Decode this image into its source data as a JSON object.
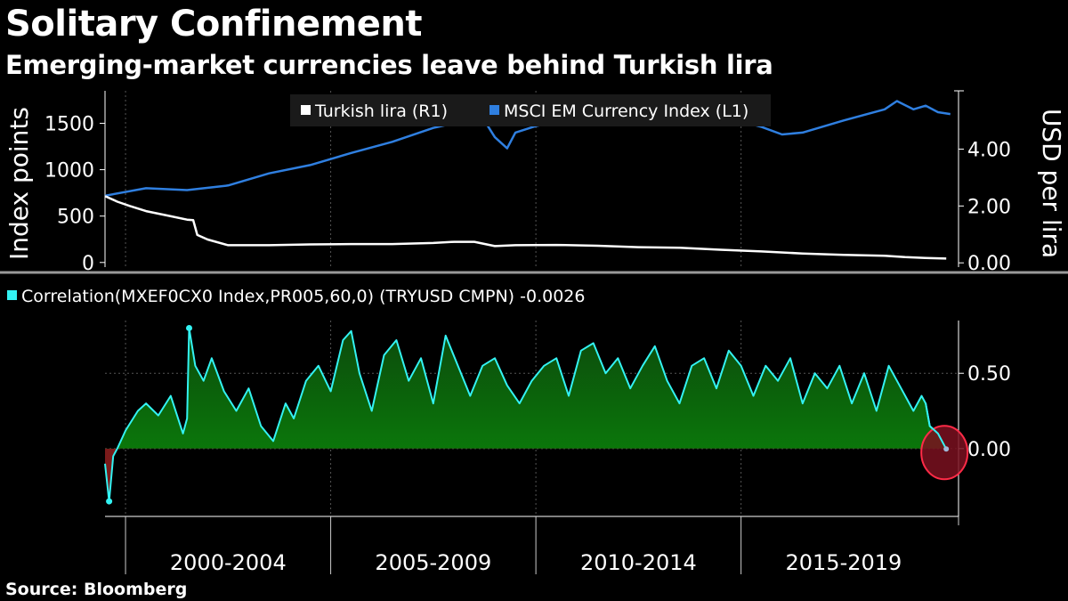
{
  "title": "Solitary Confinement",
  "subtitle": "Emerging-market currencies leave behind Turkish lira",
  "source": "Source: Bloomberg",
  "colors": {
    "lira": "#ffffff",
    "msci": "#2f7fe0",
    "correlation": "#33f2f2",
    "fill_positive": "#0a7a0a",
    "fill_negative": "#7a1a1a",
    "highlight": "#ff2b47",
    "grid": "#555555",
    "divider": "#999999"
  },
  "chart_data": [
    {
      "type": "line",
      "panel": "top",
      "ylabel": "Index points",
      "ylabel_right": "USD per lira",
      "ylim": [
        -50,
        1850
      ],
      "ylim_right": [
        -0.15,
        6.05
      ],
      "yticks": [
        0,
        500,
        1000,
        1500
      ],
      "yticks_right": [
        0.0,
        2.0,
        4.0
      ],
      "ytick_labels": [
        "0",
        "500",
        "1000",
        "1500"
      ],
      "ytick_labels_right": [
        "0.00",
        "2.00",
        "4.00"
      ],
      "xlim": [
        1999.0,
        2019.8
      ],
      "legend_placement": "top",
      "series": [
        {
          "name": "Turkish lira (R1)",
          "axis": "right",
          "x": [
            1999.0,
            1999.3,
            1999.6,
            2000.0,
            2000.5,
            2001.0,
            2001.15,
            2001.25,
            2001.5,
            2002.0,
            2003.0,
            2004.0,
            2005.0,
            2006.0,
            2007.0,
            2007.5,
            2008.0,
            2008.5,
            2009.0,
            2010.0,
            2011.0,
            2012.0,
            2013.0,
            2014.0,
            2015.0,
            2016.0,
            2017.0,
            2018.0,
            2018.5,
            2019.0,
            2019.5
          ],
          "y": [
            2.35,
            2.15,
            2.0,
            1.82,
            1.67,
            1.52,
            1.5,
            0.98,
            0.82,
            0.62,
            0.62,
            0.65,
            0.66,
            0.66,
            0.7,
            0.74,
            0.74,
            0.59,
            0.62,
            0.63,
            0.6,
            0.55,
            0.53,
            0.46,
            0.4,
            0.33,
            0.28,
            0.25,
            0.2,
            0.17,
            0.15
          ]
        },
        {
          "name": "MSCI EM Currency Index (L1)",
          "axis": "left",
          "x": [
            1999.0,
            2000.0,
            2001.0,
            2002.0,
            2003.0,
            2004.0,
            2005.0,
            2006.0,
            2007.0,
            2008.0,
            2008.2,
            2008.5,
            2008.8,
            2009.0,
            2009.5,
            2010.0,
            2011.0,
            2011.5,
            2012.0,
            2013.0,
            2014.0,
            2015.0,
            2015.5,
            2016.0,
            2017.0,
            2018.0,
            2018.3,
            2018.7,
            2019.0,
            2019.3,
            2019.6
          ],
          "y": [
            720,
            800,
            780,
            830,
            960,
            1050,
            1180,
            1300,
            1450,
            1550,
            1560,
            1350,
            1230,
            1400,
            1470,
            1520,
            1600,
            1510,
            1560,
            1600,
            1580,
            1460,
            1380,
            1400,
            1530,
            1650,
            1740,
            1650,
            1690,
            1620,
            1600
          ]
        }
      ]
    },
    {
      "type": "area",
      "panel": "bottom",
      "title": "Correlation(MXEF0CX0 Index,PR005,60,0) (TRYUSD CMPN) -0.0026",
      "series_name": "Correlation(MXEF0CX0 Index,PR005,60,0) (TRYUSD CMPN)",
      "last_value": "-0.0026",
      "ylim": [
        -0.45,
        0.85
      ],
      "yticks": [
        0.0,
        0.5
      ],
      "ytick_labels": [
        "0.00",
        "0.50"
      ],
      "xlim": [
        1999.0,
        2019.8
      ],
      "x": [
        1999.0,
        1999.1,
        1999.2,
        1999.3,
        1999.5,
        1999.8,
        2000.0,
        2000.3,
        2000.6,
        2000.9,
        2001.0,
        2001.05,
        2001.2,
        2001.4,
        2001.6,
        2001.9,
        2002.2,
        2002.5,
        2002.8,
        2003.1,
        2003.4,
        2003.6,
        2003.9,
        2004.2,
        2004.5,
        2004.8,
        2005.0,
        2005.2,
        2005.5,
        2005.8,
        2006.1,
        2006.4,
        2006.7,
        2007.0,
        2007.3,
        2007.6,
        2007.9,
        2008.2,
        2008.5,
        2008.8,
        2009.1,
        2009.4,
        2009.7,
        2010.0,
        2010.3,
        2010.6,
        2010.9,
        2011.2,
        2011.5,
        2011.8,
        2012.1,
        2012.4,
        2012.7,
        2013.0,
        2013.3,
        2013.6,
        2013.9,
        2014.2,
        2014.5,
        2014.8,
        2015.1,
        2015.4,
        2015.7,
        2016.0,
        2016.3,
        2016.6,
        2016.9,
        2017.2,
        2017.5,
        2017.8,
        2018.1,
        2018.4,
        2018.7,
        2018.9,
        2019.0,
        2019.1,
        2019.3,
        2019.5
      ],
      "y": [
        -0.1,
        -0.35,
        -0.05,
        0.0,
        0.12,
        0.25,
        0.3,
        0.22,
        0.35,
        0.1,
        0.2,
        0.8,
        0.55,
        0.45,
        0.6,
        0.38,
        0.25,
        0.4,
        0.15,
        0.05,
        0.3,
        0.2,
        0.45,
        0.55,
        0.38,
        0.72,
        0.78,
        0.5,
        0.25,
        0.62,
        0.72,
        0.45,
        0.6,
        0.3,
        0.75,
        0.55,
        0.35,
        0.55,
        0.6,
        0.42,
        0.3,
        0.45,
        0.55,
        0.6,
        0.35,
        0.65,
        0.7,
        0.5,
        0.6,
        0.4,
        0.55,
        0.68,
        0.45,
        0.3,
        0.55,
        0.6,
        0.4,
        0.65,
        0.55,
        0.35,
        0.55,
        0.45,
        0.6,
        0.3,
        0.5,
        0.4,
        0.55,
        0.3,
        0.5,
        0.25,
        0.55,
        0.4,
        0.25,
        0.35,
        0.3,
        0.15,
        0.1,
        -0.0026
      ]
    }
  ],
  "x_axis": {
    "period_labels": [
      "2000-2004",
      "2005-2009",
      "2010-2014",
      "2015-2019"
    ],
    "period_centers": [
      2002.0,
      2007.0,
      2012.0,
      2017.0
    ],
    "period_boundaries": [
      1999.5,
      2004.5,
      2009.5,
      2014.5
    ]
  }
}
